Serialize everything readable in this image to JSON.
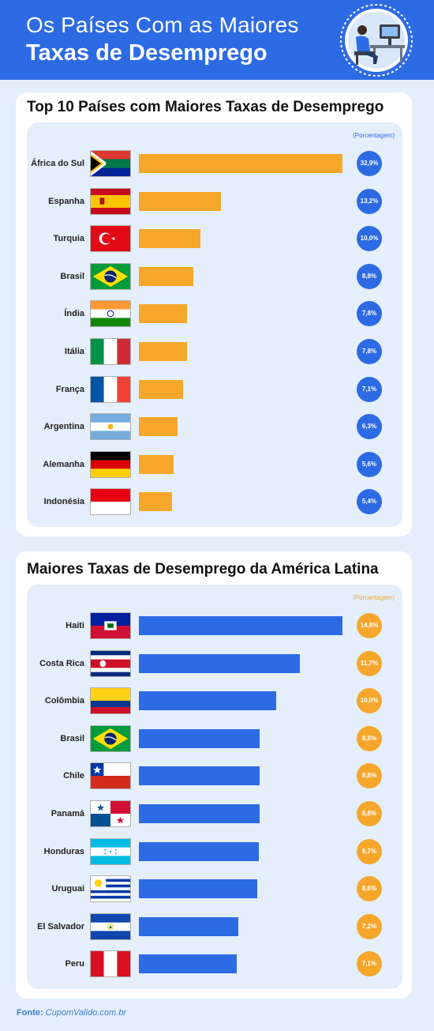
{
  "header": {
    "title_line1": "Os Países Com as Maiores",
    "title_line2": "Taxas de Desemprego"
  },
  "colors": {
    "header_bg": "#2d6be4",
    "page_bg": "#e4effb",
    "orange": "#f6a72b",
    "blue": "#2d6be4"
  },
  "chart_data": [
    {
      "type": "bar",
      "orientation": "horizontal",
      "title": "Top 10 Países com Maiores Taxas de Desemprego",
      "unit_label": "(Porcentagem)",
      "bar_color": "#f6a72b",
      "circle_color": "#2d6be4",
      "categories": [
        "África do Sul",
        "Espanha",
        "Turquia",
        "Brasil",
        "Índia",
        "Itália",
        "França",
        "Argentina",
        "Alemanha",
        "Indonésia"
      ],
      "flags": [
        "south-africa",
        "spain",
        "turkey",
        "brazil",
        "india",
        "italy",
        "france",
        "argentina",
        "germany",
        "indonesia"
      ],
      "values": [
        32.9,
        13.2,
        10.0,
        8.8,
        7.8,
        7.8,
        7.1,
        6.3,
        5.6,
        5.4
      ],
      "value_labels": [
        "32,9%",
        "13,2%",
        "10,0%",
        "8,8%",
        "7,8%",
        "7,8%",
        "7,1%",
        "6,3%",
        "5,6%",
        "5,4%"
      ]
    },
    {
      "type": "bar",
      "orientation": "horizontal",
      "title": "Maiores Taxas de Desemprego da América Latina",
      "unit_label": "(Porcentagem)",
      "bar_color": "#2d6be4",
      "circle_color": "#f6a72b",
      "categories": [
        "Haiti",
        "Costa Rica",
        "Colômbia",
        "Brasil",
        "Chile",
        "Panamá",
        "Honduras",
        "Uruguai",
        "El Salvador",
        "Peru"
      ],
      "flags": [
        "haiti",
        "costa-rica",
        "colombia",
        "brazil",
        "chile",
        "panama",
        "honduras",
        "uruguay",
        "el-salvador",
        "peru"
      ],
      "values": [
        14.8,
        11.7,
        10.0,
        8.8,
        8.8,
        8.8,
        8.7,
        8.6,
        7.2,
        7.1
      ],
      "value_labels": [
        "14,8%",
        "11,7%",
        "10,0%",
        "8,8%",
        "8,8%",
        "8,8%",
        "8,7%",
        "8,6%",
        "7,2%",
        "7,1%"
      ]
    }
  ],
  "footer": {
    "source_label": "Fonte:",
    "source_name": "CupomValido.com.br"
  }
}
